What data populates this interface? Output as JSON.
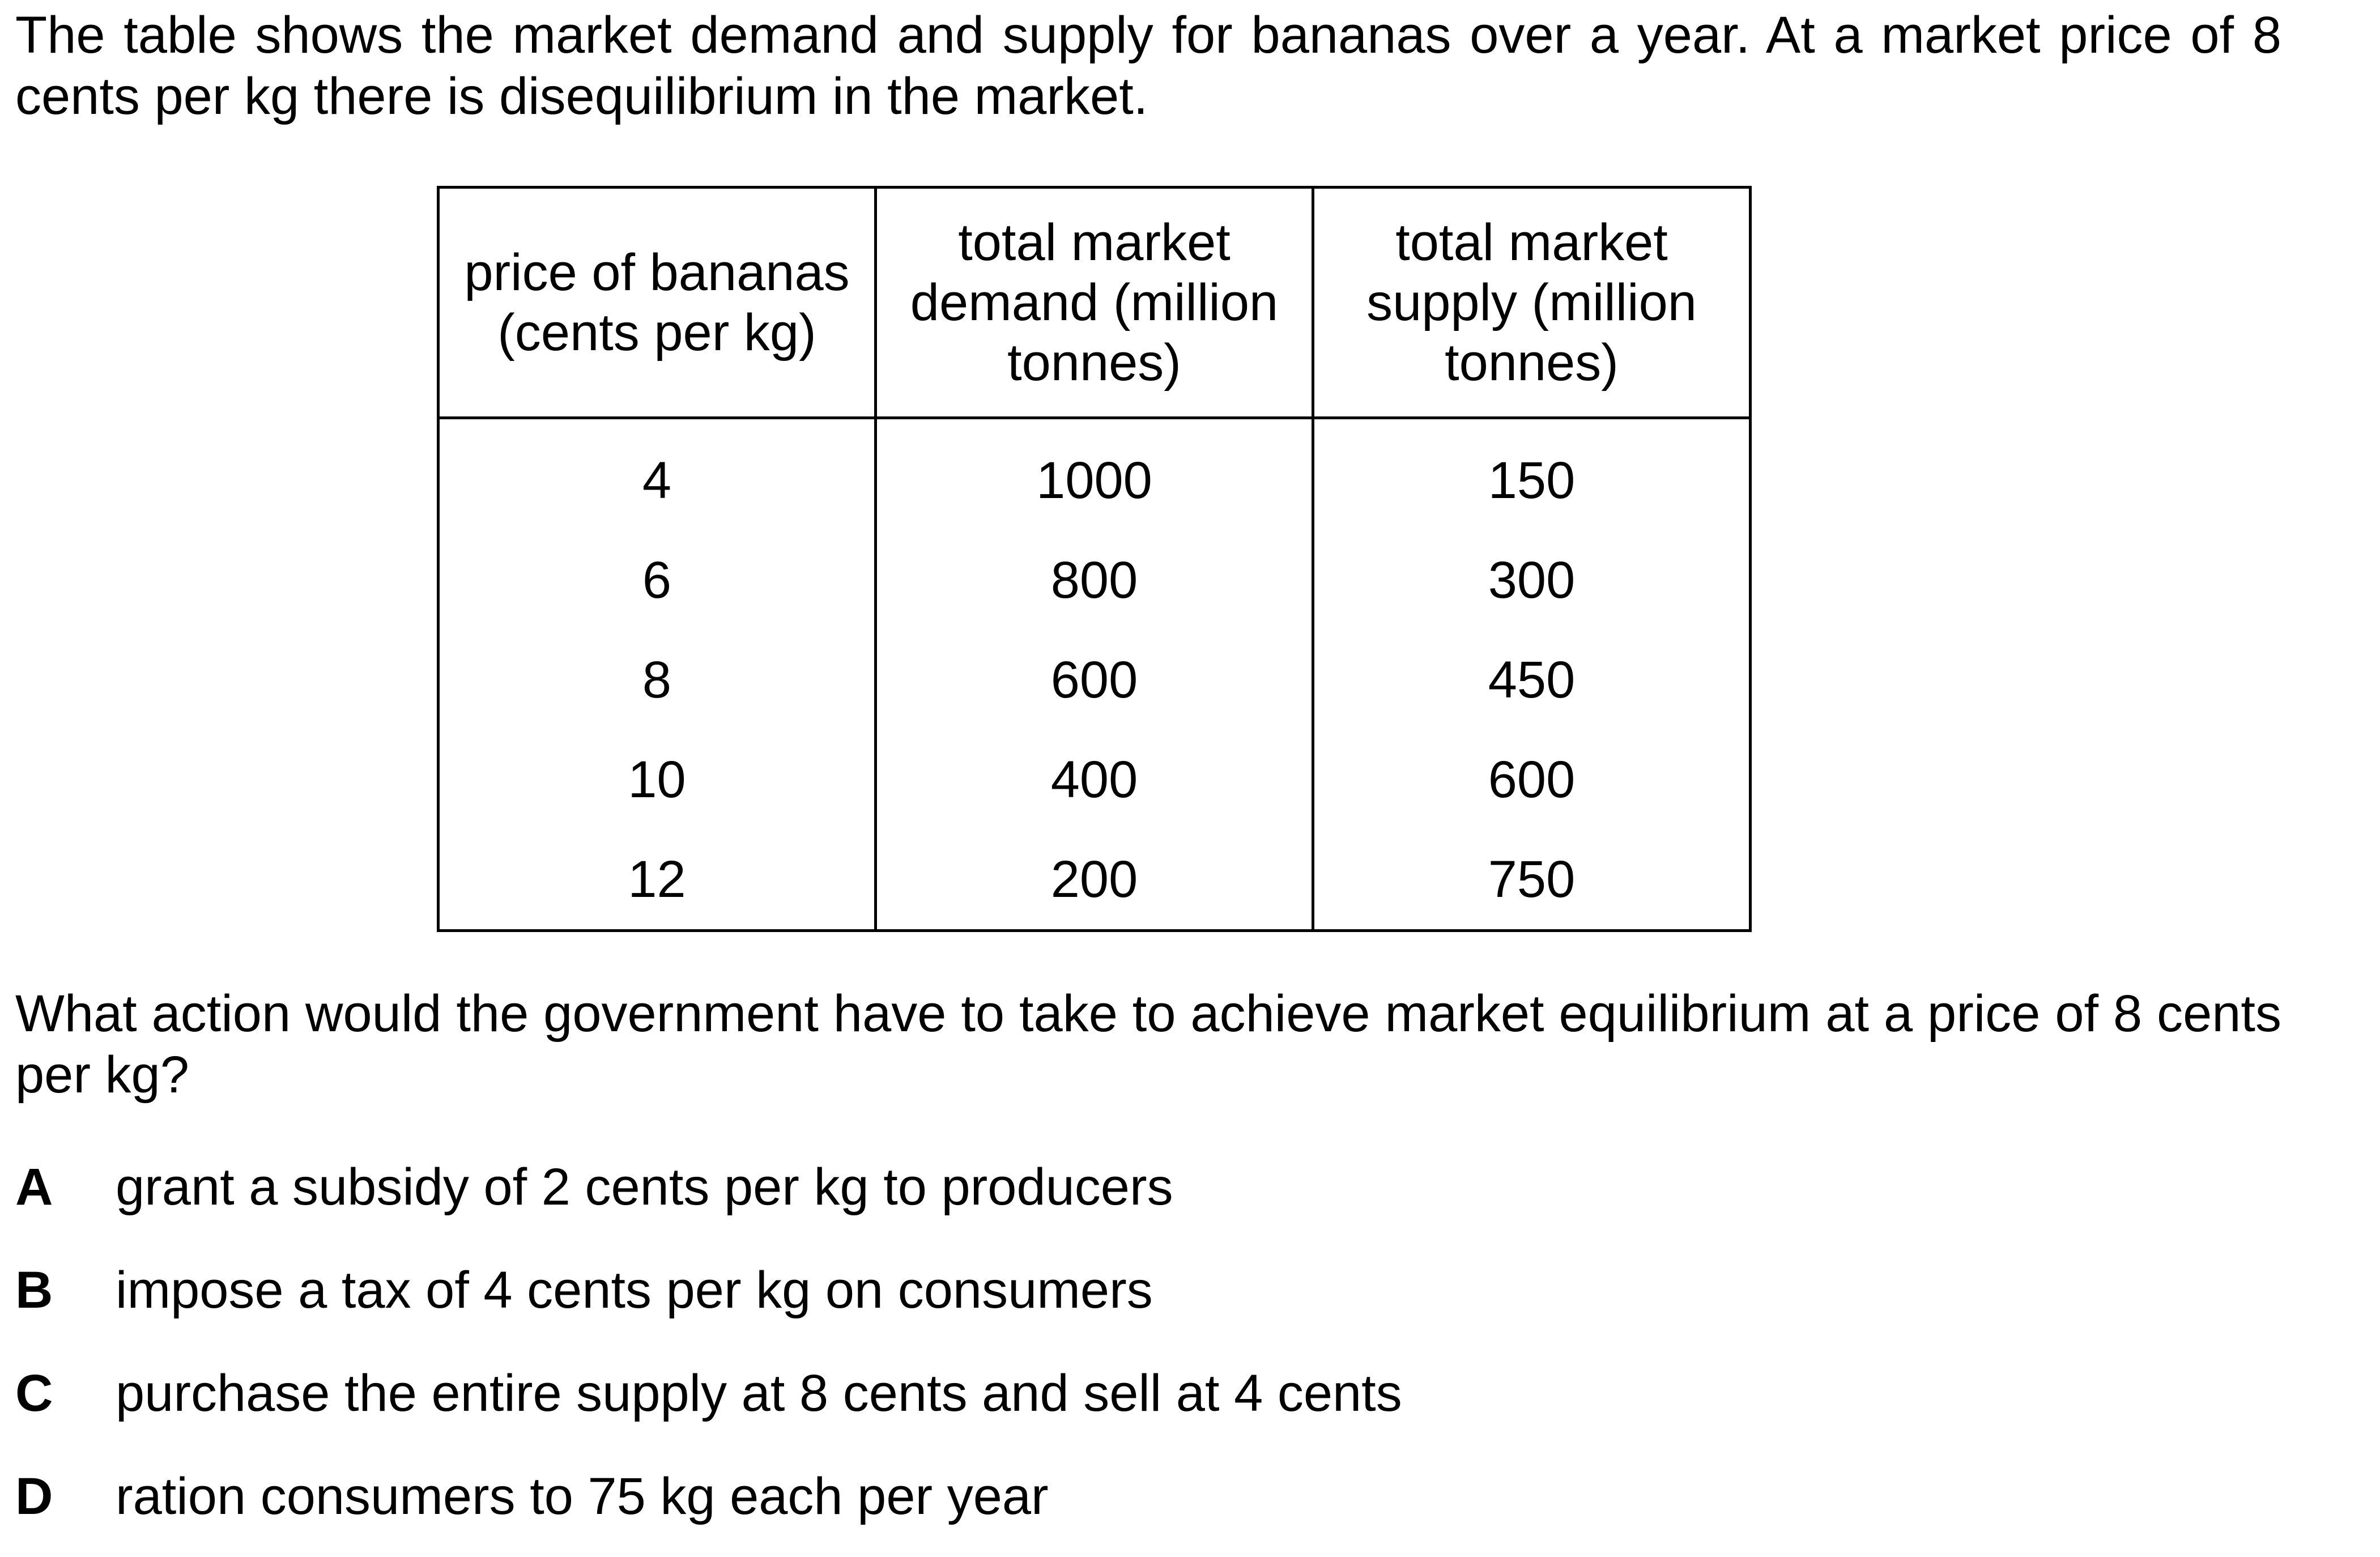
{
  "intro": "The table shows the market demand and supply for bananas over a year. At a market price of 8 cents per kg there is disequilibrium in the market.",
  "table": {
    "headers": [
      "price of bananas (cents per kg)",
      "total market demand (million tonnes)",
      "total market supply (million tonnes)"
    ],
    "rows": [
      [
        "4",
        "1000",
        "150"
      ],
      [
        "6",
        "800",
        "300"
      ],
      [
        "8",
        "600",
        "450"
      ],
      [
        "10",
        "400",
        "600"
      ],
      [
        "12",
        "200",
        "750"
      ]
    ]
  },
  "question": "What action would the government have to take to achieve market equilibrium at a price of 8 cents per kg?",
  "options": [
    {
      "letter": "A",
      "text": "grant a subsidy of 2 cents per kg to producers"
    },
    {
      "letter": "B",
      "text": "impose a tax of 4 cents per kg on consumers"
    },
    {
      "letter": "C",
      "text": "purchase the entire supply at 8 cents and sell at 4 cents"
    },
    {
      "letter": "D",
      "text": "ration consumers to 75 kg each per year"
    }
  ]
}
